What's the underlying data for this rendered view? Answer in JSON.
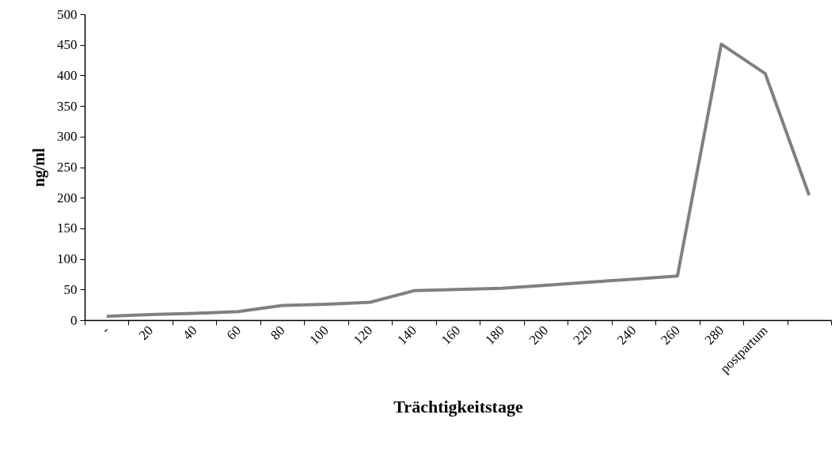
{
  "chart_data": {
    "type": "line",
    "xlabel": "Trächtigkeitstage",
    "ylabel": "ng/ml",
    "categories": [
      "-",
      "20",
      "40",
      "60",
      "80",
      "100",
      "120",
      "140",
      "160",
      "180",
      "200",
      "220",
      "240",
      "260",
      "280",
      "postpartum",
      null
    ],
    "series": [
      {
        "color": "#808080",
        "values": [
          6,
          9,
          11,
          14,
          24,
          26,
          29,
          48,
          50,
          52,
          57,
          62,
          67,
          72,
          451,
          403,
          204
        ]
      }
    ],
    "ylim": [
      0,
      500
    ],
    "yticks": [
      0,
      50,
      100,
      150,
      200,
      250,
      300,
      350,
      400,
      450,
      500
    ],
    "grid": false
  }
}
